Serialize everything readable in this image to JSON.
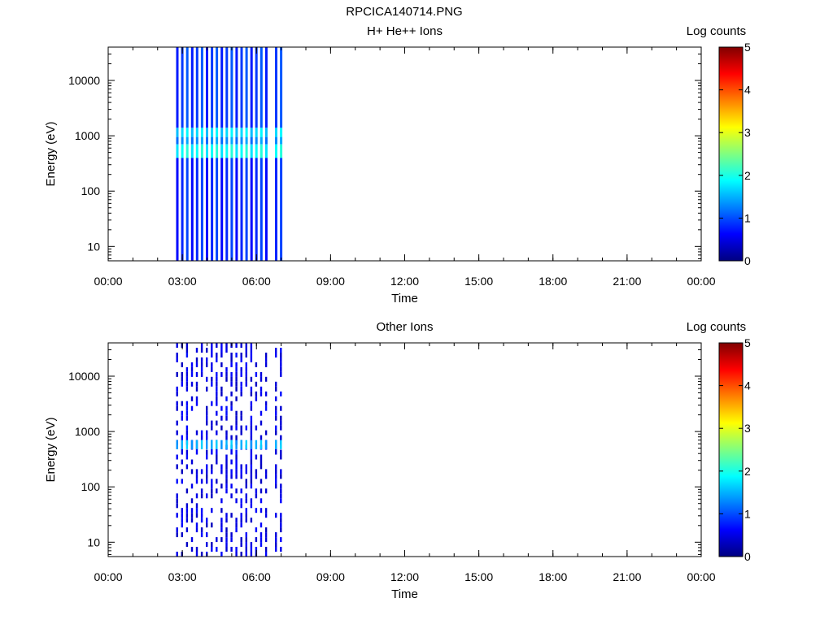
{
  "figure_title": "RPCICA140714.PNG",
  "colors": {
    "scale": [
      "#00008f",
      "#0000ff",
      "#0080ff",
      "#00ffff",
      "#80ff80",
      "#ffff00",
      "#ff8000",
      "#ff0000",
      "#800000"
    ]
  },
  "chart_data": [
    {
      "type": "heatmap",
      "title": "H+ He++ Ions",
      "xlabel": "Time",
      "ylabel": "Energy (eV)",
      "colorbar_label": "Log counts",
      "xlim_hours": [
        0,
        24
      ],
      "xticks": [
        "00:00",
        "03:00",
        "06:00",
        "09:00",
        "12:00",
        "15:00",
        "18:00",
        "21:00",
        "00:00"
      ],
      "ylim_eV": [
        5.5,
        40000
      ],
      "yscale": "log",
      "yticks": [
        10,
        100,
        1000,
        10000
      ],
      "ytick_labels": [
        "10",
        "100",
        "1000",
        "10000"
      ],
      "clim": [
        0,
        5
      ],
      "colorbar_ticks": [
        "0",
        "1",
        "2",
        "3",
        "4",
        "5"
      ],
      "scans_start_hours": [
        2.75,
        2.95,
        3.15,
        3.35,
        3.55,
        3.75,
        3.95,
        4.15,
        4.35,
        4.55,
        4.75,
        4.95,
        5.15,
        5.35,
        5.55,
        5.75,
        5.95,
        6.15,
        6.35,
        6.75,
        6.95
      ],
      "scan_width_hours": 0.1,
      "bands": [
        {
          "e_lo": 5.5,
          "e_hi": 400,
          "log_counts": 0.8
        },
        {
          "e_lo": 400,
          "e_hi": 700,
          "log_counts": 1.9
        },
        {
          "e_lo": 700,
          "e_hi": 950,
          "log_counts": 1.3
        },
        {
          "e_lo": 950,
          "e_hi": 1400,
          "log_counts": 1.7
        },
        {
          "e_lo": 1400,
          "e_hi": 40000,
          "log_counts": 0.9
        }
      ]
    },
    {
      "type": "heatmap",
      "title": "Other Ions",
      "xlabel": "Time",
      "ylabel": "Energy (eV)",
      "colorbar_label": "Log counts",
      "xlim_hours": [
        0,
        24
      ],
      "xticks": [
        "00:00",
        "03:00",
        "06:00",
        "09:00",
        "12:00",
        "15:00",
        "18:00",
        "21:00",
        "00:00"
      ],
      "ylim_eV": [
        5.5,
        40000
      ],
      "yscale": "log",
      "yticks": [
        10,
        100,
        1000,
        10000
      ],
      "ytick_labels": [
        "10",
        "100",
        "1000",
        "10000"
      ],
      "clim": [
        0,
        5
      ],
      "colorbar_ticks": [
        "0",
        "1",
        "2",
        "3",
        "4",
        "5"
      ],
      "scans_start_hours": [
        2.75,
        2.95,
        3.15,
        3.35,
        3.55,
        3.75,
        3.95,
        4.15,
        4.35,
        4.55,
        4.75,
        4.95,
        5.15,
        5.35,
        5.55,
        5.75,
        5.95,
        6.15,
        6.35,
        6.75,
        6.95
      ],
      "scan_width_hours": 0.08,
      "bands": [
        {
          "e_lo": 5.5,
          "e_hi": 40000,
          "log_counts": 0.3,
          "sparse": true
        },
        {
          "e_lo": 480,
          "e_hi": 700,
          "log_counts": 1.5
        }
      ]
    }
  ]
}
